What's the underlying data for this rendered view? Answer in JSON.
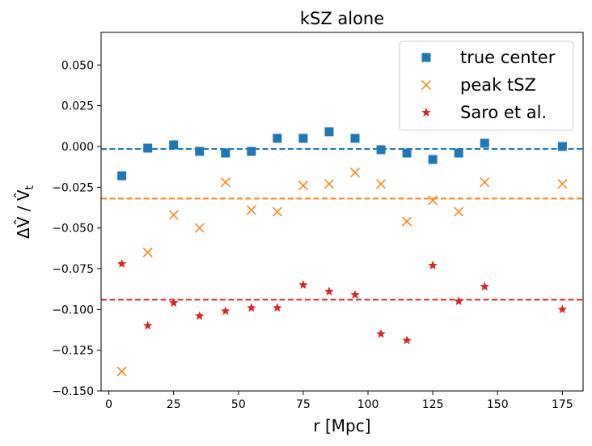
{
  "chart_data": {
    "type": "scatter",
    "title": "kSZ alone",
    "xlabel": "r [Mpc]",
    "ylabel": "ΔV̂ / V̂",
    "ylabel_subscript": "t",
    "xlim": [
      -3,
      183
    ],
    "ylim": [
      -0.15,
      0.07
    ],
    "xticks": [
      0,
      25,
      50,
      75,
      100,
      125,
      150,
      175
    ],
    "yticks": [
      0.05,
      0.025,
      0.0,
      -0.025,
      -0.05,
      -0.075,
      -0.1,
      -0.125,
      -0.15
    ],
    "ytick_labels": [
      "0.050",
      "0.025",
      "0.000",
      "−0.025",
      "−0.050",
      "−0.075",
      "−0.100",
      "−0.125",
      "−0.150"
    ],
    "x": [
      5,
      15,
      25,
      35,
      45,
      55,
      65,
      75,
      85,
      95,
      105,
      115,
      125,
      135,
      145,
      175
    ],
    "legend_position": "top-right",
    "series": [
      {
        "name": "true center",
        "marker": "square",
        "color": "#1f77b4",
        "values": [
          -0.018,
          -0.001,
          0.001,
          -0.003,
          -0.004,
          -0.003,
          0.005,
          0.005,
          0.009,
          0.005,
          -0.002,
          -0.004,
          -0.008,
          -0.004,
          0.002,
          0.0
        ],
        "mean_line": -0.0015
      },
      {
        "name": "peak tSZ",
        "marker": "x",
        "color": "#ff7f0e",
        "values": [
          -0.138,
          -0.065,
          -0.042,
          -0.05,
          -0.022,
          -0.039,
          -0.04,
          -0.024,
          -0.023,
          -0.016,
          -0.023,
          -0.046,
          -0.033,
          -0.04,
          -0.022,
          -0.023
        ],
        "mean_line": -0.032
      },
      {
        "name": "Saro et al.",
        "marker": "star",
        "color": "#d62728",
        "values": [
          -0.072,
          -0.11,
          -0.096,
          -0.104,
          -0.101,
          -0.099,
          -0.099,
          -0.085,
          -0.089,
          -0.091,
          -0.115,
          -0.119,
          -0.073,
          -0.095,
          -0.086,
          -0.1
        ],
        "mean_line": -0.094
      }
    ]
  }
}
